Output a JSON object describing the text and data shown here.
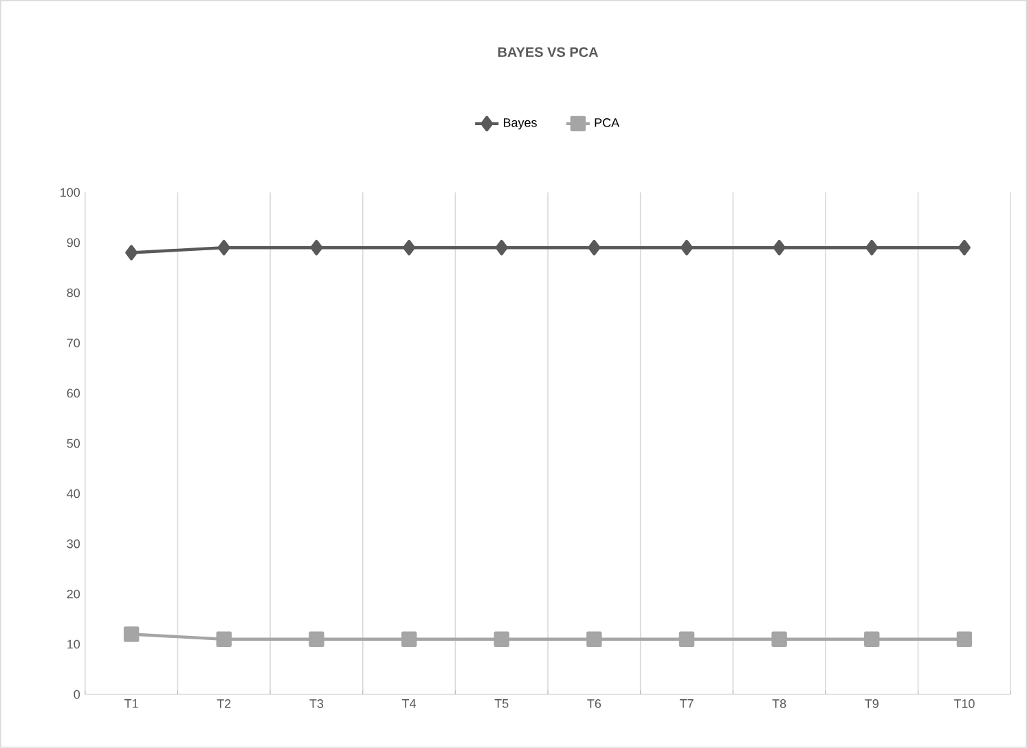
{
  "chart_data": {
    "type": "line",
    "title": "BAYES VS PCA",
    "categories": [
      "T1",
      "T2",
      "T3",
      "T4",
      "T5",
      "T6",
      "T7",
      "T8",
      "T9",
      "T10"
    ],
    "series": [
      {
        "name": "Bayes",
        "color": "#595959",
        "marker": "diamond",
        "values": [
          88,
          89,
          89,
          89,
          89,
          89,
          89,
          89,
          89,
          89
        ]
      },
      {
        "name": "PCA",
        "color": "#a5a5a5",
        "marker": "square",
        "values": [
          12,
          11,
          11,
          11,
          11,
          11,
          11,
          11,
          11,
          11
        ]
      }
    ],
    "ylim": [
      0,
      100
    ],
    "yticks": [
      0,
      10,
      20,
      30,
      40,
      50,
      60,
      70,
      80,
      90,
      100
    ],
    "grid": "x",
    "legend": "top",
    "line_style": "solid"
  }
}
